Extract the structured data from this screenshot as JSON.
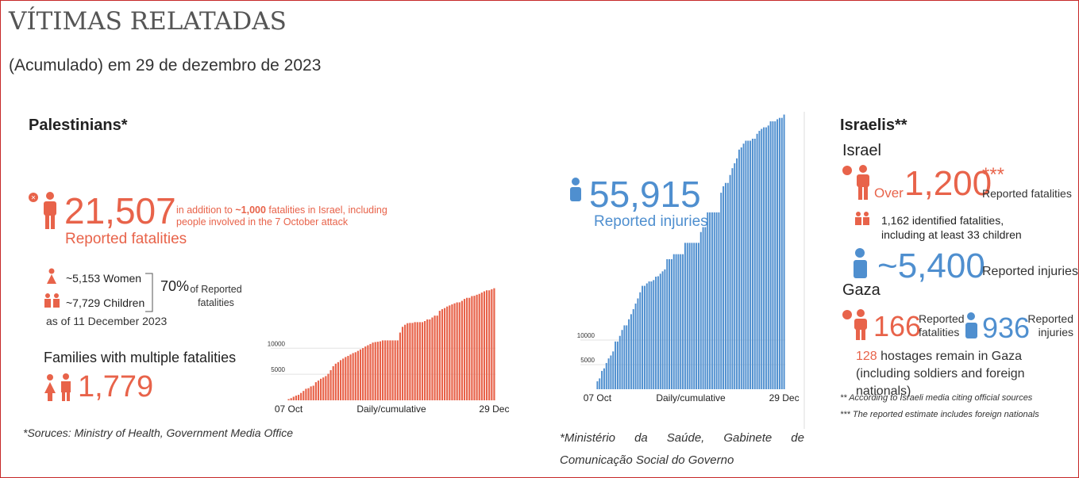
{
  "header": {
    "title": "VÍTIMAS RELATADAS",
    "subtitle": "(Acumulado) em 29 de dezembro de 2023"
  },
  "palestinians": {
    "heading": "Palestinians*",
    "fatalities": "21,507",
    "fatalities_label": "Reported fatalities",
    "note_before": "in addition to ",
    "note_bold": "~1,000",
    "note_after": " fatalities in Israel, including people involved in the 7 October attack",
    "women": "~5,153",
    "women_label": "Women",
    "children": "~7,729",
    "children_label": "Children",
    "percent": "70%",
    "percent_label": "of Reported fatalities",
    "as_of": "as of 11 December 2023",
    "families_heading": "Families with multiple fatalities",
    "families": "1,779",
    "injuries": "55,915",
    "injuries_label": "Reported injuries",
    "source": "*Soruces: Ministry of Health, Government Media Office",
    "source2": "*Ministério da Saúde, Gabinete de Comunicação Social do Governo"
  },
  "israelis": {
    "heading": "Israelis**",
    "israel": "Israel",
    "over": "Over",
    "fatalities": "1,200",
    "stars": "***",
    "fatalities_label": "Reported fatalities",
    "identified": "1,162 identified fatalities, including at least 33 children",
    "injuries": "~5,400",
    "injuries_label": "Reported injuries",
    "gaza": "Gaza",
    "gaza_fatalities": "166",
    "gaza_fatalities_label": "Reported fatalities",
    "gaza_injuries": "936",
    "gaza_injuries_label": "Reported injuries",
    "hostages": "128",
    "hostages_text": " hostages remain in Gaza (including soldiers and foreign nationals)",
    "note1": "** According to Israeli media citing official sources",
    "note2": "*** The reported estimate includes foreign nationals"
  },
  "chart_data": [
    {
      "type": "bar",
      "xlabel": "Daily/cumulative",
      "color": "#e8634a",
      "ylim": [
        0,
        21600
      ],
      "yticks": [
        5000,
        10000
      ],
      "categories": [
        "07 Oct",
        null,
        null,
        null,
        null,
        null,
        null,
        null,
        null,
        null,
        null,
        null,
        null,
        null,
        null,
        null,
        null,
        null,
        null,
        null,
        null,
        null,
        null,
        null,
        null,
        null,
        null,
        null,
        null,
        null,
        null,
        null,
        null,
        null,
        null,
        null,
        null,
        null,
        null,
        null,
        null,
        null,
        null,
        null,
        null,
        null,
        null,
        null,
        null,
        null,
        null,
        null,
        null,
        null,
        null,
        null,
        null,
        null,
        null,
        null,
        null,
        null,
        null,
        null,
        null,
        null,
        null,
        null,
        null,
        null,
        null,
        null,
        null,
        null,
        null,
        null,
        null,
        null,
        null,
        null,
        null,
        null,
        null,
        "29 Dec"
      ],
      "values": [
        232,
        413,
        687,
        900,
        1055,
        1417,
        1799,
        2215,
        2329,
        2670,
        2808,
        3478,
        3785,
        4137,
        4385,
        4651,
        5087,
        5791,
        6546,
        7028,
        7326,
        7703,
        8005,
        8306,
        8525,
        8796,
        9061,
        9227,
        9488,
        9770,
        10022,
        10328,
        10569,
        10812,
        11078,
        11180,
        11240,
        11320,
        11500,
        11500,
        11500,
        11500,
        11500,
        11500,
        11500,
        13000,
        14100,
        14500,
        14800,
        14854,
        14854,
        15000,
        15000,
        15000,
        15000,
        15207,
        15523,
        15523,
        15899,
        16248,
        16248,
        17177,
        17487,
        17700,
        17997,
        18205,
        18412,
        18608,
        18787,
        18800,
        19088,
        19453,
        19667,
        19667,
        20000,
        20057,
        20258,
        20424,
        20674,
        20915,
        21110,
        21110,
        21320,
        21507
      ]
    },
    {
      "type": "bar",
      "xlabel": "Daily/cumulative",
      "color": "#4f8fcf",
      "ylim": [
        0,
        56000
      ],
      "yticks": [
        5000,
        10000
      ],
      "categories": [
        "07 Oct",
        null,
        null,
        null,
        null,
        null,
        null,
        null,
        null,
        null,
        null,
        null,
        null,
        null,
        null,
        null,
        null,
        null,
        null,
        null,
        null,
        null,
        null,
        null,
        null,
        null,
        null,
        null,
        null,
        null,
        null,
        null,
        null,
        null,
        null,
        null,
        null,
        null,
        null,
        null,
        null,
        null,
        null,
        null,
        null,
        null,
        null,
        null,
        null,
        null,
        null,
        null,
        null,
        null,
        null,
        null,
        null,
        null,
        null,
        null,
        null,
        null,
        null,
        null,
        null,
        null,
        null,
        null,
        null,
        null,
        null,
        null,
        null,
        null,
        null,
        null,
        null,
        null,
        null,
        null,
        null,
        null,
        null,
        "29 Dec"
      ],
      "values": [
        1610,
        2200,
        3726,
        4250,
        5339,
        6268,
        6868,
        7696,
        9714,
        9714,
        10859,
        12065,
        13000,
        13000,
        14245,
        15273,
        16297,
        17439,
        18484,
        19734,
        21048,
        21048,
        21543,
        21943,
        21943,
        22219,
        22911,
        23000,
        23516,
        24000,
        24400,
        26475,
        26475,
        26475,
        27490,
        27490,
        27490,
        27490,
        27490,
        29800,
        29800,
        29800,
        29800,
        29800,
        29800,
        29800,
        32000,
        33000,
        33000,
        36000,
        36000,
        36000,
        36000,
        36000,
        36000,
        40004,
        41316,
        42000,
        42000,
        43616,
        45000,
        46000,
        47000,
        48780,
        49229,
        50000,
        50594,
        50594,
        50594,
        51000,
        51000,
        52000,
        52600,
        53000,
        53320,
        53320,
        53688,
        54536,
        54536,
        54536,
        54962,
        55243,
        55243,
        55915
      ]
    }
  ]
}
